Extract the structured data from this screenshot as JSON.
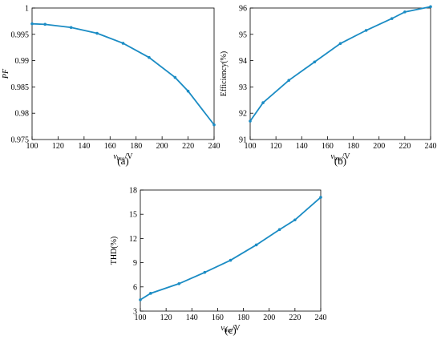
{
  "chart_data": [
    {
      "type": "line",
      "caption": "(a)",
      "ylabel": "PF",
      "xlabel": {
        "symbol": "v",
        "subscript": "bus",
        "unit": "/V"
      },
      "x": [
        100,
        110,
        130,
        150,
        170,
        190,
        210,
        220,
        240
      ],
      "values": [
        0.997,
        0.9969,
        0.9963,
        0.9952,
        0.9933,
        0.9906,
        0.9868,
        0.9842,
        0.9778
      ],
      "color": "#1b8cc4",
      "xlim": [
        100,
        240
      ],
      "xticks": [
        100,
        120,
        140,
        160,
        180,
        200,
        220,
        240
      ],
      "ylim": [
        0.975,
        1
      ],
      "yticks": [
        0.975,
        0.98,
        0.985,
        0.99,
        0.995,
        1
      ]
    },
    {
      "type": "line",
      "caption": "(b)",
      "ylabel": "Efficiency(%)",
      "xlabel": {
        "symbol": "v",
        "subscript": "bus",
        "unit": "/V"
      },
      "x": [
        100,
        110,
        130,
        150,
        170,
        190,
        210,
        220,
        240
      ],
      "values": [
        91.7,
        92.4,
        93.25,
        93.95,
        94.65,
        95.15,
        95.6,
        95.85,
        96.05
      ],
      "color": "#1b8cc4",
      "xlim": [
        100,
        240
      ],
      "xticks": [
        100,
        120,
        140,
        160,
        180,
        200,
        220,
        240
      ],
      "ylim": [
        91,
        96
      ],
      "yticks": [
        91,
        92,
        93,
        94,
        95,
        96
      ]
    },
    {
      "type": "line",
      "caption": "(c)",
      "ylabel": "THD(%)",
      "xlabel": {
        "symbol": "v",
        "subscript": "bus",
        "unit": "/V"
      },
      "x": [
        100,
        108,
        130,
        150,
        170,
        190,
        208,
        220,
        240
      ],
      "values": [
        4.4,
        5.2,
        6.4,
        7.8,
        9.3,
        11.2,
        13.1,
        14.3,
        17.1
      ],
      "color": "#1b8cc4",
      "xlim": [
        100,
        240
      ],
      "xticks": [
        100,
        120,
        140,
        160,
        180,
        200,
        220,
        240
      ],
      "ylim": [
        3,
        18
      ],
      "yticks": [
        3,
        6,
        9,
        12,
        15,
        18
      ]
    }
  ]
}
